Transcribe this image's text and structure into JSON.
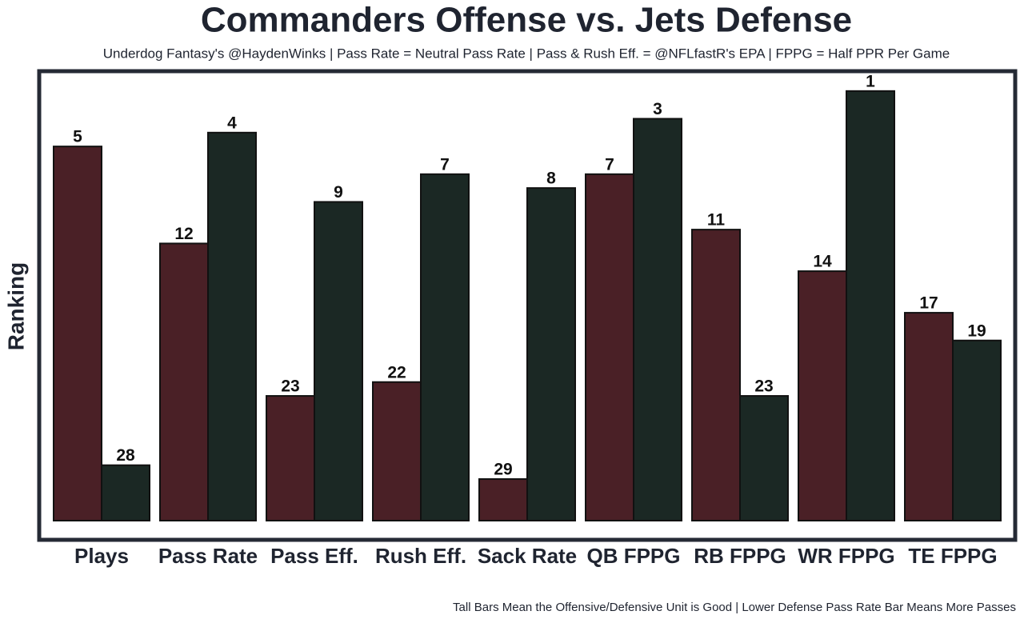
{
  "chart_data": {
    "type": "bar",
    "title": "Commanders Offense vs. Jets Defense",
    "subtitle": "Underdog Fantasy's @HaydenWinks | Pass Rate = Neutral Pass Rate | Pass & Rush Eff. = @NFLfastR's EPA | FPPG = Half PPR Per Game",
    "ylabel": "Ranking",
    "footnote": "Tall Bars Mean the Offensive/Defensive Unit is Good | Lower Defense Pass Rate Bar Means More Passes",
    "categories": [
      "Plays",
      "Pass Rate",
      "Pass Eff.",
      "Rush Eff.",
      "Sack Rate",
      "QB FPPG",
      "RB FPPG",
      "WR FPPG",
      "TE FPPG"
    ],
    "series": [
      {
        "color": "#4a2026",
        "values": [
          5,
          12,
          23,
          22,
          29,
          7,
          11,
          14,
          17
        ]
      },
      {
        "color": "#1b2824",
        "values": [
          28,
          4,
          9,
          7,
          8,
          3,
          23,
          1,
          19
        ]
      }
    ],
    "ylim": [
      32,
      0
    ]
  }
}
